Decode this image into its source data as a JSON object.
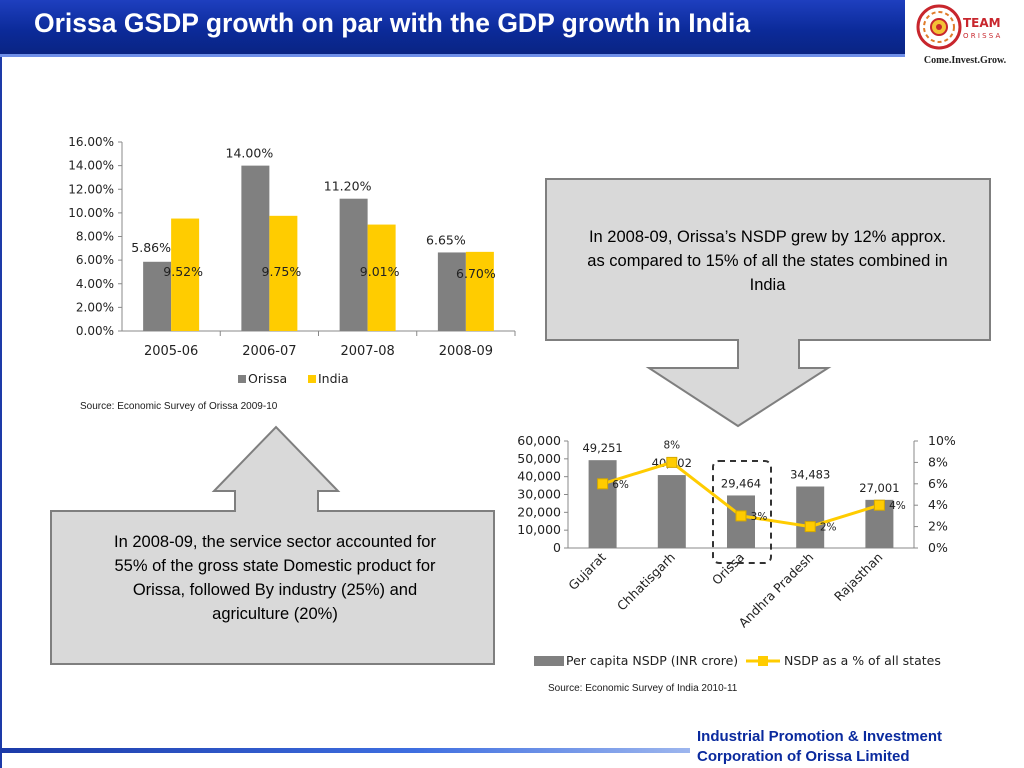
{
  "slide": {
    "title": "Orissa GSDP growth on par with the GDP growth in India",
    "logo": {
      "name": "TEAM ORISSA",
      "tagline": "Come.Invest.Grow."
    },
    "footer": [
      "Industrial Promotion & Investment",
      "Corporation of Orissa Limited"
    ],
    "callout_top": "In 2008-09, Orissa’s NSDP grew by 12% approx. as compared to 15% of all the states combined in India",
    "callout_bottom": "In 2008-09, the service sector accounted for 55% of the gross state Domestic product for Orissa, followed By industry (25%) and agriculture (20%)",
    "source_left": "Source: Economic Survey of Orissa 2009-10",
    "source_right": "Source: Economic Survey of India  2010-11"
  },
  "colors": {
    "title_bar": "#0b2a98",
    "orissa_bar": "#808080",
    "india_bar": "#ffcc00",
    "footer_text": "#0a2a9e",
    "callout_fill": "#d9d9d9"
  },
  "chart_data": [
    {
      "type": "bar",
      "categories": [
        "2005-06",
        "2006-07",
        "2007-08",
        "2008-09"
      ],
      "series": [
        {
          "name": "Orissa",
          "values": [
            5.86,
            14.0,
            11.2,
            6.65
          ],
          "labels": [
            "5.86%",
            "14.00%",
            "11.20%",
            "6.65%"
          ],
          "color": "#808080"
        },
        {
          "name": "India",
          "values": [
            9.52,
            9.75,
            9.01,
            6.7
          ],
          "labels": [
            "9.52%",
            "9.75%",
            "9.01%",
            "6.70%"
          ],
          "color": "#ffcc00"
        }
      ],
      "ylim": [
        0,
        16
      ],
      "yticks": [
        "0.00%",
        "2.00%",
        "4.00%",
        "6.00%",
        "8.00%",
        "10.00%",
        "12.00%",
        "14.00%",
        "16.00%"
      ],
      "legend": "bottom",
      "grid": false
    },
    {
      "type": "bar",
      "categories": [
        "Gujarat",
        "Chhatisgarh",
        "Orissa",
        "Andhra Pradesh",
        "Rajasthan"
      ],
      "series": [
        {
          "name": "Per capita NSDP (INR crore)",
          "type": "bar",
          "axis": "left",
          "values": [
            49251,
            40902,
            29464,
            34483,
            27001
          ],
          "labels": [
            "49,251",
            "40,902",
            "29,464",
            "34,483",
            "27,001"
          ],
          "color": "#808080"
        },
        {
          "name": "NSDP as a % of all states",
          "type": "line",
          "axis": "right",
          "values": [
            6,
            8,
            3,
            2,
            4
          ],
          "labels": [
            "6%",
            "8%",
            "3%",
            "2%",
            "4%"
          ],
          "color": "#ffcc00"
        }
      ],
      "ylim_left": [
        0,
        60000
      ],
      "yticks_left": [
        "0",
        "10,000",
        "20,000",
        "30,000",
        "40,000",
        "50,000",
        "60,000"
      ],
      "ylim_right": [
        0,
        10
      ],
      "yticks_right": [
        "0%",
        "2%",
        "4%",
        "6%",
        "8%",
        "10%"
      ],
      "highlight": "Orissa",
      "legend": "bottom",
      "grid": false
    }
  ]
}
